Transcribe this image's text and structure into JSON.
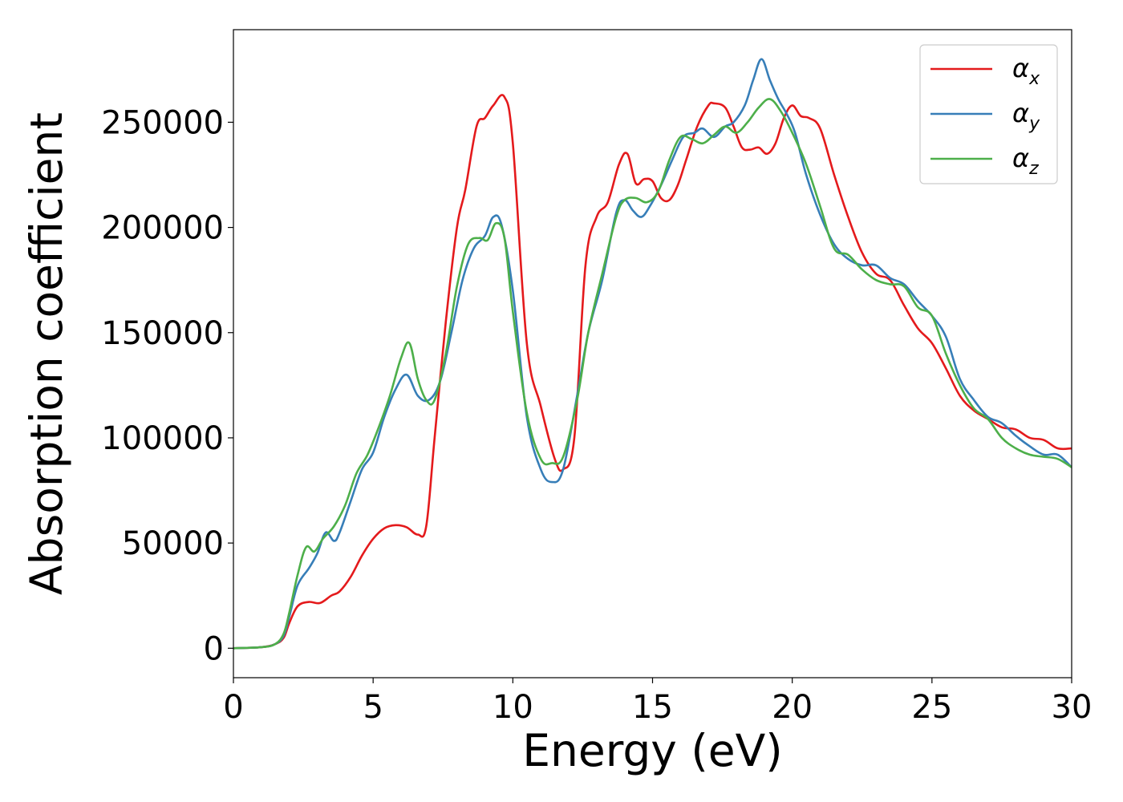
{
  "chart_data": {
    "type": "line",
    "xlabel": "Energy (eV)",
    "ylabel": "Absorption coefficient",
    "xlim": [
      0,
      30
    ],
    "ylim": [
      -14000,
      294000
    ],
    "xticks": [
      0,
      5,
      10,
      15,
      20,
      25,
      30
    ],
    "xtick_labels": [
      "0",
      "5",
      "10",
      "15",
      "20",
      "25",
      "30"
    ],
    "yticks": [
      0,
      50000,
      100000,
      150000,
      200000,
      250000
    ],
    "ytick_labels": [
      "0",
      "50000",
      "100000",
      "150000",
      "200000",
      "250000"
    ],
    "grid": false,
    "legend_position": "top-right",
    "series": [
      {
        "name": "αx",
        "legend_base": "α",
        "legend_sub": "x",
        "color": "#e41a1c",
        "x": [
          0,
          1,
          1.5,
          1.8,
          2.0,
          2.3,
          2.7,
          3.1,
          3.5,
          3.8,
          4.2,
          4.6,
          5.0,
          5.4,
          5.8,
          6.2,
          6.6,
          6.9,
          7.2,
          7.6,
          8.0,
          8.3,
          8.7,
          9.0,
          9.3,
          9.7,
          10.0,
          10.5,
          11.0,
          11.5,
          11.8,
          12.2,
          12.6,
          13.0,
          13.4,
          13.8,
          14.1,
          14.4,
          14.7,
          15.0,
          15.3,
          15.6,
          15.9,
          16.2,
          16.6,
          17.0,
          17.2,
          17.6,
          17.9,
          18.2,
          18.5,
          18.8,
          19.1,
          19.4,
          19.7,
          20.0,
          20.3,
          20.6,
          21.0,
          21.5,
          22.0,
          22.5,
          23.0,
          23.5,
          24.0,
          24.5,
          25.0,
          25.5,
          26.0,
          26.5,
          27.0,
          27.5,
          28.0,
          28.5,
          29.0,
          29.5,
          30.0
        ],
        "values": [
          0,
          500,
          2000,
          5000,
          12000,
          20000,
          22000,
          21500,
          25000,
          27000,
          34000,
          44000,
          52000,
          57000,
          58500,
          57500,
          54000,
          58000,
          100000,
          155000,
          200000,
          218000,
          248000,
          252000,
          258000,
          262000,
          240000,
          145000,
          115000,
          90000,
          85000,
          100000,
          182000,
          205000,
          212000,
          230000,
          235000,
          221000,
          223000,
          222000,
          214000,
          213000,
          220000,
          232000,
          248000,
          258000,
          259000,
          257000,
          248000,
          238000,
          237000,
          238000,
          235000,
          240000,
          252000,
          258000,
          253000,
          252000,
          247000,
          225000,
          205000,
          188000,
          178000,
          175000,
          163000,
          152000,
          145000,
          133000,
          120000,
          113000,
          109000,
          105000,
          104000,
          100000,
          99000,
          95000,
          95000
        ],
        "tension": 0.35
      },
      {
        "name": "αy",
        "legend_base": "α",
        "legend_sub": "y",
        "color": "#377eb8",
        "x": [
          0,
          1,
          1.5,
          1.8,
          2.0,
          2.3,
          2.7,
          3.0,
          3.3,
          3.6,
          3.8,
          4.2,
          4.6,
          5.0,
          5.4,
          5.8,
          6.2,
          6.6,
          7.0,
          7.4,
          7.8,
          8.2,
          8.6,
          9.0,
          9.3,
          9.6,
          10.0,
          10.5,
          11.0,
          11.4,
          11.8,
          12.3,
          12.7,
          13.2,
          13.7,
          14.0,
          14.3,
          14.6,
          14.9,
          15.3,
          15.7,
          16.1,
          16.5,
          16.8,
          17.2,
          17.6,
          17.9,
          18.3,
          18.6,
          18.9,
          19.2,
          19.5,
          19.8,
          20.1,
          20.5,
          21.0,
          21.5,
          22.0,
          22.5,
          23.0,
          23.5,
          24.0,
          24.5,
          25.0,
          25.5,
          26.0,
          26.5,
          27.0,
          27.5,
          28.0,
          28.5,
          29.0,
          29.5,
          30.0
        ],
        "values": [
          0,
          500,
          2000,
          6000,
          15000,
          30000,
          38000,
          45000,
          55000,
          51000,
          55000,
          70000,
          85000,
          93000,
          110000,
          123000,
          130000,
          120000,
          118000,
          127000,
          150000,
          175000,
          190000,
          196000,
          205000,
          201000,
          170000,
          110000,
          85000,
          79000,
          85000,
          120000,
          150000,
          175000,
          207000,
          213000,
          208000,
          205000,
          210000,
          220000,
          232000,
          243000,
          245000,
          247000,
          243000,
          248000,
          250000,
          258000,
          270000,
          280000,
          270000,
          261000,
          254000,
          245000,
          225000,
          206000,
          192000,
          185000,
          182000,
          182000,
          176000,
          173000,
          165000,
          158000,
          148000,
          128000,
          118000,
          110000,
          107000,
          101000,
          96000,
          92000,
          92000,
          86000
        ],
        "tension": 0.35
      },
      {
        "name": "αz",
        "legend_base": "α",
        "legend_sub": "z",
        "color": "#4daf4a",
        "x": [
          0,
          1,
          1.5,
          1.8,
          2.0,
          2.3,
          2.6,
          2.9,
          3.2,
          3.6,
          4.0,
          4.4,
          4.8,
          5.2,
          5.6,
          6.0,
          6.3,
          6.6,
          6.9,
          7.2,
          7.6,
          8.0,
          8.4,
          8.8,
          9.1,
          9.4,
          9.7,
          10.0,
          10.5,
          11.0,
          11.4,
          11.8,
          12.3,
          12.7,
          13.2,
          13.7,
          14.0,
          14.4,
          14.8,
          15.2,
          15.6,
          16.0,
          16.4,
          16.8,
          17.2,
          17.6,
          18.0,
          18.4,
          18.8,
          19.2,
          19.6,
          20.0,
          20.5,
          21.0,
          21.5,
          22.0,
          22.5,
          23.0,
          23.5,
          24.0,
          24.5,
          25.0,
          25.5,
          26.0,
          26.5,
          27.0,
          27.5,
          28.0,
          28.5,
          29.0,
          29.5,
          30.0
        ],
        "values": [
          0,
          500,
          2000,
          7000,
          17000,
          35000,
          48000,
          46000,
          52000,
          58000,
          68000,
          83000,
          92000,
          105000,
          120000,
          138000,
          145000,
          128000,
          118000,
          118000,
          140000,
          172000,
          192000,
          195000,
          194000,
          202000,
          195000,
          160000,
          112000,
          90000,
          88000,
          91000,
          118000,
          150000,
          178000,
          205000,
          213000,
          214000,
          212000,
          217000,
          232000,
          243000,
          242000,
          240000,
          244000,
          248000,
          245000,
          250000,
          257000,
          261000,
          255000,
          245000,
          230000,
          210000,
          190000,
          187000,
          180000,
          175000,
          173000,
          172000,
          162000,
          158000,
          140000,
          125000,
          114000,
          109000,
          100000,
          95000,
          92000,
          91000,
          90000,
          86000
        ],
        "tension": 0.35
      }
    ]
  }
}
